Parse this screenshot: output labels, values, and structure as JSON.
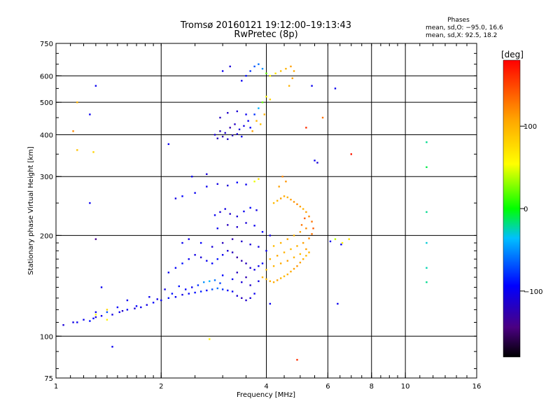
{
  "header": {
    "title_line1": "Tromsø 20160121 19:12:00–19:13:43",
    "title_line2": "RwPretec (8p)"
  },
  "stats": {
    "heading": "Phases",
    "line_o": "mean, sd,O: −95.0, 16.6",
    "line_x": "mean, sd,X:  92.5, 18.2"
  },
  "colorbar": {
    "unit_label": "[deg]",
    "ticks": [
      {
        "value": 100,
        "label": "100"
      },
      {
        "value": 0,
        "label": "0"
      },
      {
        "value": -100,
        "label": "−100"
      }
    ],
    "range": [
      -180,
      180
    ]
  },
  "chart_data": {
    "type": "scatter",
    "title": "Tromsø 20160121 19:12:00–19:13:43",
    "subtitle": "RwPretec (8p)",
    "xlabel": "Frequency [MHz]",
    "ylabel": "Stationary phase Virtual Height [km]",
    "x_scale": "log",
    "y_scale": "log",
    "xlim": [
      1,
      16
    ],
    "ylim": [
      75,
      750
    ],
    "grid": true,
    "x_ticks": [
      {
        "value": 1,
        "label": "1"
      },
      {
        "value": 2,
        "label": "2"
      },
      {
        "value": 4,
        "label": "4"
      },
      {
        "value": 6,
        "label": "6"
      },
      {
        "value": 8,
        "label": "8"
      },
      {
        "value": 10,
        "label": "10"
      },
      {
        "value": 16,
        "label": "16"
      }
    ],
    "y_ticks": [
      {
        "value": 75,
        "label": "75"
      },
      {
        "value": 100,
        "label": "100"
      },
      {
        "value": 200,
        "label": "200"
      },
      {
        "value": 300,
        "label": "300"
      },
      {
        "value": 400,
        "label": "400"
      },
      {
        "value": 500,
        "label": "500"
      },
      {
        "value": 600,
        "label": "600"
      },
      {
        "value": 750,
        "label": "750"
      }
    ],
    "x_gridlines": [
      2,
      4,
      6,
      8,
      10
    ],
    "y_gridlines": [
      100,
      200,
      300,
      400,
      500,
      600
    ],
    "color_axis": {
      "label": "[deg]",
      "range": [
        -180,
        180
      ]
    },
    "points": [
      [
        1.05,
        108,
        -110
      ],
      [
        1.12,
        110,
        -105
      ],
      [
        1.2,
        112,
        -100
      ],
      [
        1.28,
        113,
        -95
      ],
      [
        1.35,
        115,
        -100
      ],
      [
        1.4,
        112,
        60
      ],
      [
        1.45,
        116,
        -105
      ],
      [
        1.52,
        118,
        -100
      ],
      [
        1.6,
        120,
        -95
      ],
      [
        1.68,
        121,
        -110
      ],
      [
        1.75,
        122,
        -100
      ],
      [
        1.82,
        124,
        -105
      ],
      [
        1.9,
        126,
        -95
      ],
      [
        2.0,
        128,
        -100
      ],
      [
        2.1,
        130,
        -90
      ],
      [
        2.2,
        131,
        -100
      ],
      [
        2.3,
        133,
        -105
      ],
      [
        2.4,
        134,
        -95
      ],
      [
        2.5,
        135,
        -90
      ],
      [
        2.6,
        136,
        -85
      ],
      [
        2.7,
        137,
        -95
      ],
      [
        2.8,
        138,
        -70
      ],
      [
        2.9,
        139,
        -60
      ],
      [
        3.0,
        138,
        -80
      ],
      [
        3.1,
        137,
        -95
      ],
      [
        3.2,
        136,
        -100
      ],
      [
        3.3,
        132,
        -110
      ],
      [
        3.4,
        130,
        -120
      ],
      [
        3.5,
        128,
        -115
      ],
      [
        3.6,
        130,
        -110
      ],
      [
        3.7,
        134,
        -100
      ],
      [
        1.15,
        110,
        -100
      ],
      [
        1.25,
        111,
        -90
      ],
      [
        1.3,
        114,
        -110
      ],
      [
        1.55,
        119,
        -115
      ],
      [
        1.7,
        123,
        -95
      ],
      [
        1.95,
        129,
        -105
      ],
      [
        2.15,
        134,
        -90
      ],
      [
        2.35,
        138,
        -95
      ],
      [
        2.45,
        140,
        -100
      ],
      [
        2.25,
        141,
        -90
      ],
      [
        1.6,
        128,
        -100
      ],
      [
        1.5,
        122,
        -95
      ],
      [
        1.4,
        118,
        -70
      ],
      [
        1.3,
        116,
        60
      ],
      [
        2.05,
        138,
        -105
      ],
      [
        1.85,
        131,
        -100
      ],
      [
        2.55,
        142,
        -80
      ],
      [
        2.65,
        145,
        -50
      ],
      [
        2.75,
        146,
        -40
      ],
      [
        2.85,
        147,
        -60
      ],
      [
        2.95,
        144,
        -75
      ],
      [
        2.1,
        155,
        -100
      ],
      [
        2.2,
        160,
        -95
      ],
      [
        2.3,
        165,
        -90
      ],
      [
        2.4,
        170,
        -100
      ],
      [
        2.5,
        175,
        -105
      ],
      [
        2.6,
        172,
        -110
      ],
      [
        2.7,
        168,
        -100
      ],
      [
        2.8,
        165,
        -95
      ],
      [
        2.9,
        170,
        -90
      ],
      [
        3.0,
        175,
        -100
      ],
      [
        3.1,
        180,
        -110
      ],
      [
        3.2,
        178,
        -120
      ],
      [
        3.3,
        172,
        -130
      ],
      [
        3.4,
        168,
        -125
      ],
      [
        3.5,
        165,
        -120
      ],
      [
        3.6,
        160,
        -110
      ],
      [
        3.7,
        158,
        -105
      ],
      [
        3.8,
        162,
        -100
      ],
      [
        3.9,
        165,
        -95
      ],
      [
        2.3,
        190,
        -100
      ],
      [
        2.4,
        195,
        -105
      ],
      [
        2.6,
        190,
        -95
      ],
      [
        2.8,
        185,
        -110
      ],
      [
        3.0,
        190,
        -120
      ],
      [
        3.2,
        195,
        -125
      ],
      [
        3.4,
        192,
        -115
      ],
      [
        3.6,
        188,
        -110
      ],
      [
        3.8,
        185,
        -105
      ],
      [
        4.0,
        180,
        -100
      ],
      [
        2.85,
        230,
        -100
      ],
      [
        2.95,
        235,
        -110
      ],
      [
        3.05,
        240,
        -105
      ],
      [
        3.15,
        232,
        -115
      ],
      [
        3.3,
        228,
        -110
      ],
      [
        3.45,
        236,
        -100
      ],
      [
        3.6,
        242,
        -95
      ],
      [
        3.75,
        238,
        -105
      ],
      [
        2.9,
        210,
        -100
      ],
      [
        3.1,
        215,
        -120
      ],
      [
        3.3,
        212,
        -115
      ],
      [
        3.5,
        218,
        -110
      ],
      [
        3.7,
        214,
        -100
      ],
      [
        3.9,
        205,
        -95
      ],
      [
        4.1,
        200,
        -105
      ],
      [
        3.2,
        148,
        -100
      ],
      [
        3.4,
        145,
        -110
      ],
      [
        3.6,
        142,
        -115
      ],
      [
        3.8,
        146,
        -105
      ],
      [
        3.0,
        152,
        -95
      ],
      [
        3.3,
        155,
        -120
      ],
      [
        3.5,
        150,
        -125
      ],
      [
        2.7,
        280,
        -100
      ],
      [
        2.9,
        285,
        -105
      ],
      [
        3.1,
        282,
        -110
      ],
      [
        3.3,
        288,
        -95
      ],
      [
        3.5,
        284,
        -100
      ],
      [
        3.7,
        290,
        50
      ],
      [
        3.8,
        295,
        70
      ],
      [
        2.5,
        268,
        -100
      ],
      [
        2.3,
        262,
        -95
      ],
      [
        2.2,
        258,
        -105
      ],
      [
        2.45,
        300,
        -100
      ],
      [
        2.7,
        305,
        -110
      ],
      [
        2.85,
        400,
        -110
      ],
      [
        2.95,
        410,
        -120
      ],
      [
        3.05,
        405,
        -115
      ],
      [
        3.15,
        420,
        -125
      ],
      [
        3.25,
        430,
        -118
      ],
      [
        3.35,
        415,
        -110
      ],
      [
        3.45,
        425,
        -105
      ],
      [
        3.55,
        440,
        -100
      ],
      [
        2.9,
        390,
        -120
      ],
      [
        3.0,
        395,
        -125
      ],
      [
        3.1,
        388,
        -115
      ],
      [
        3.2,
        398,
        -120
      ],
      [
        3.3,
        402,
        -110
      ],
      [
        3.4,
        395,
        -100
      ],
      [
        3.6,
        420,
        -95
      ],
      [
        3.7,
        460,
        -80
      ],
      [
        3.8,
        480,
        -40
      ],
      [
        3.9,
        500,
        20
      ],
      [
        4.0,
        520,
        60
      ],
      [
        4.1,
        510,
        80
      ],
      [
        3.75,
        440,
        100
      ],
      [
        3.65,
        410,
        110
      ],
      [
        3.85,
        430,
        90
      ],
      [
        3.95,
        460,
        100
      ],
      [
        3.5,
        460,
        -100
      ],
      [
        3.3,
        470,
        -110
      ],
      [
        3.1,
        465,
        -115
      ],
      [
        2.95,
        450,
        -120
      ],
      [
        3.4,
        580,
        -100
      ],
      [
        3.5,
        600,
        -90
      ],
      [
        3.6,
        620,
        -80
      ],
      [
        3.7,
        640,
        -70
      ],
      [
        3.8,
        650,
        -60
      ],
      [
        3.9,
        630,
        -50
      ],
      [
        4.0,
        610,
        20
      ],
      [
        4.1,
        600,
        60
      ],
      [
        4.25,
        610,
        70
      ],
      [
        4.4,
        620,
        90
      ],
      [
        4.55,
        630,
        100
      ],
      [
        4.7,
        640,
        110
      ],
      [
        4.8,
        620,
        105
      ],
      [
        4.75,
        590,
        110
      ],
      [
        4.65,
        560,
        100
      ],
      [
        3.0,
        620,
        -100
      ],
      [
        3.15,
        640,
        -110
      ],
      [
        3.9,
        150,
        100
      ],
      [
        4.0,
        148,
        95
      ],
      [
        4.1,
        146,
        100
      ],
      [
        4.2,
        145,
        105
      ],
      [
        4.3,
        147,
        110
      ],
      [
        4.4,
        149,
        100
      ],
      [
        4.5,
        151,
        95
      ],
      [
        4.6,
        153,
        100
      ],
      [
        4.7,
        156,
        105
      ],
      [
        4.8,
        159,
        110
      ],
      [
        4.9,
        162,
        115
      ],
      [
        5.0,
        166,
        110
      ],
      [
        5.1,
        170,
        100
      ],
      [
        5.2,
        174,
        95
      ],
      [
        5.3,
        178,
        100
      ],
      [
        4.0,
        158,
        90
      ],
      [
        4.2,
        162,
        100
      ],
      [
        4.4,
        165,
        105
      ],
      [
        4.6,
        168,
        110
      ],
      [
        4.8,
        172,
        100
      ],
      [
        5.0,
        176,
        95
      ],
      [
        5.2,
        182,
        110
      ],
      [
        4.1,
        170,
        100
      ],
      [
        4.3,
        174,
        105
      ],
      [
        4.5,
        178,
        100
      ],
      [
        4.7,
        182,
        95
      ],
      [
        4.9,
        186,
        100
      ],
      [
        5.1,
        190,
        110
      ],
      [
        5.3,
        196,
        120
      ],
      [
        5.4,
        202,
        130
      ],
      [
        5.45,
        210,
        140
      ],
      [
        5.4,
        220,
        130
      ],
      [
        5.3,
        228,
        120
      ],
      [
        5.2,
        235,
        110
      ],
      [
        5.1,
        240,
        100
      ],
      [
        5.0,
        244,
        110
      ],
      [
        4.9,
        248,
        120
      ],
      [
        4.8,
        252,
        115
      ],
      [
        4.7,
        256,
        110
      ],
      [
        4.6,
        260,
        100
      ],
      [
        4.5,
        262,
        105
      ],
      [
        4.4,
        258,
        110
      ],
      [
        4.3,
        254,
        100
      ],
      [
        4.2,
        250,
        95
      ],
      [
        4.6,
        195,
        105
      ],
      [
        4.8,
        200,
        100
      ],
      [
        5.0,
        205,
        110
      ],
      [
        5.2,
        210,
        120
      ],
      [
        4.4,
        190,
        100
      ],
      [
        4.2,
        186,
        95
      ],
      [
        5.05,
        215,
        130
      ],
      [
        5.15,
        225,
        140
      ],
      [
        4.35,
        280,
        110
      ],
      [
        4.45,
        300,
        120
      ],
      [
        4.55,
        290,
        115
      ],
      [
        6.1,
        192,
        -100
      ],
      [
        6.3,
        195,
        40
      ],
      [
        6.6,
        190,
        60
      ],
      [
        6.9,
        195,
        70
      ],
      [
        7.0,
        350,
        170
      ],
      [
        5.5,
        335,
        -100
      ],
      [
        5.6,
        330,
        -110
      ],
      [
        5.2,
        420,
        160
      ],
      [
        5.4,
        560,
        -100
      ],
      [
        5.8,
        450,
        130
      ],
      [
        11.5,
        380,
        -20
      ],
      [
        11.5,
        320,
        -10
      ],
      [
        11.5,
        235,
        -20
      ],
      [
        11.5,
        190,
        -30
      ],
      [
        11.5,
        160,
        -25
      ],
      [
        11.5,
        145,
        -20
      ],
      [
        1.15,
        500,
        100
      ],
      [
        1.12,
        410,
        120
      ],
      [
        1.15,
        360,
        90
      ],
      [
        1.28,
        355,
        80
      ],
      [
        1.25,
        460,
        -100
      ],
      [
        1.3,
        560,
        -100
      ],
      [
        1.25,
        250,
        -100
      ],
      [
        1.3,
        195,
        -140
      ],
      [
        1.35,
        140,
        -100
      ],
      [
        1.3,
        118,
        -100
      ],
      [
        1.4,
        120,
        80
      ],
      [
        1.45,
        93,
        -100
      ],
      [
        2.1,
        375,
        -100
      ],
      [
        2.75,
        98,
        60
      ],
      [
        4.9,
        85,
        160
      ],
      [
        6.3,
        550,
        -100
      ],
      [
        6.4,
        125,
        -100
      ],
      [
        4.1,
        125,
        -100
      ],
      [
        6.55,
        188,
        -100
      ]
    ]
  }
}
